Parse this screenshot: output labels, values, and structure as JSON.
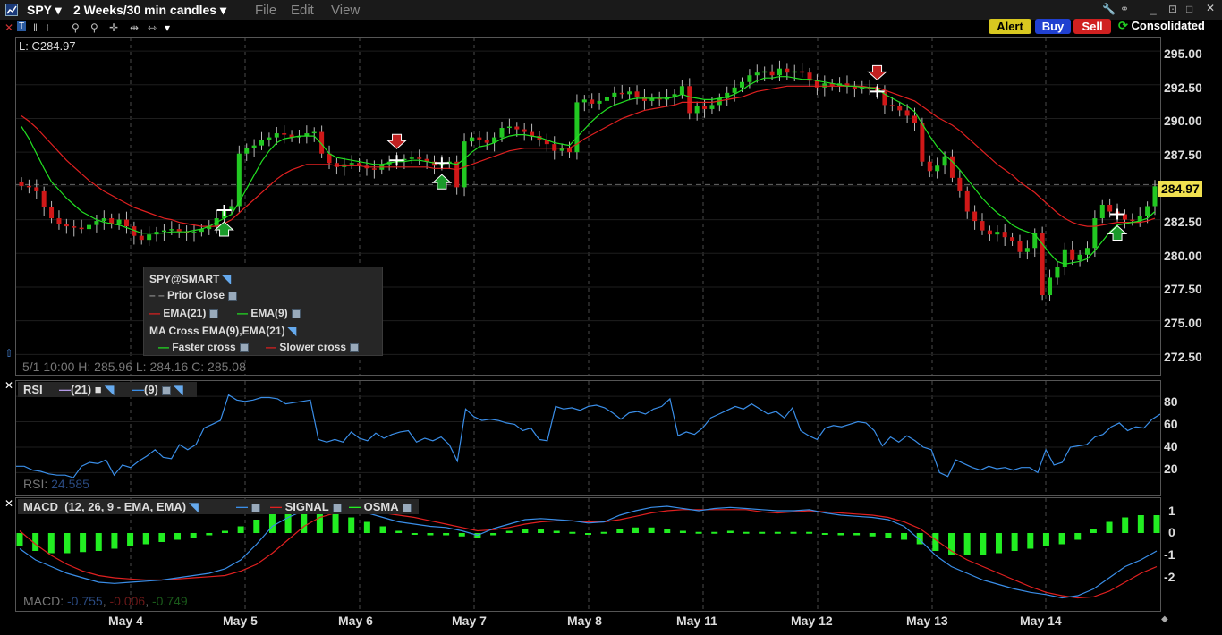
{
  "window": {
    "symbol": "SPY",
    "period": "2 Weeks/30 min candles",
    "menus": [
      "File",
      "Edit",
      "View"
    ]
  },
  "actions": {
    "alert": "Alert",
    "buy": "Buy",
    "sell": "Sell",
    "feed": "Consolidated"
  },
  "price_pane": {
    "last_label": "L: C284.97",
    "last_price": "284.97",
    "bar_info": "5/1 10:00   H: 285.96  L: 284.16  C: 285.08",
    "y_ticks": [
      "295.00",
      "292.50",
      "290.00",
      "287.50",
      "285.00",
      "282.50",
      "280.00",
      "277.50",
      "275.00",
      "272.50"
    ],
    "legend": {
      "title": "SPY@SMART",
      "prior_close": "Prior Close",
      "ema21": "EMA(21)",
      "ema9": "EMA(9)",
      "ma_cross": "MA Cross EMA(9),EMA(21)",
      "faster": "Faster cross",
      "slower": "Slower cross"
    }
  },
  "rsi_pane": {
    "title": "RSI",
    "p21": "(21)",
    "p9": "(9)",
    "readout_label": "RSI:",
    "readout_value": "24.585",
    "y_ticks": [
      "80",
      "60",
      "40",
      "20"
    ]
  },
  "macd_pane": {
    "title": "MACD",
    "params": "(12, 26, 9 - EMA, EMA)",
    "signal": "SIGNAL",
    "osma": "OSMA",
    "readout_label": "MACD:",
    "readout_macd": "-0.755",
    "readout_signal": "-0.006",
    "readout_osma": "-0.749",
    "y_ticks": [
      "1",
      "0",
      "-1",
      "-2"
    ]
  },
  "x_axis": {
    "dates": [
      "May 4",
      "May 5",
      "May 6",
      "May 7",
      "May 8",
      "May 11",
      "May 12",
      "May 13",
      "May 14"
    ]
  },
  "colors": {
    "up": "#22c822",
    "down": "#d01818",
    "ema21": "#e02020",
    "ema9": "#22e022",
    "rsi": "#3a8ee8",
    "macd": "#3a8ee8",
    "signal": "#e02020",
    "osma": "#22ee22",
    "last_price_bg": "#f0e050"
  },
  "chart_data": {
    "type": "candlestick",
    "price_close": [
      285.0,
      284.9,
      284.6,
      283.4,
      282.6,
      282.2,
      282.0,
      281.9,
      281.8,
      282.1,
      282.4,
      282.6,
      282.2,
      282.5,
      282.0,
      281.3,
      281.0,
      281.4,
      281.6,
      281.7,
      281.8,
      281.6,
      281.5,
      281.6,
      281.8,
      282.0,
      282.6,
      283.2,
      283.5,
      287.4,
      287.8,
      288.0,
      288.4,
      288.6,
      288.9,
      288.8,
      288.6,
      288.7,
      288.9,
      289.0,
      287.4,
      286.7,
      286.4,
      286.6,
      286.7,
      286.5,
      286.3,
      286.2,
      286.6,
      286.8,
      286.9,
      287.0,
      287.1,
      287.0,
      286.8,
      286.5,
      286.7,
      286.8,
      284.9,
      288.3,
      288.6,
      288.4,
      288.2,
      288.6,
      289.3,
      289.4,
      289.2,
      289.0,
      288.7,
      288.4,
      288.1,
      287.6,
      287.8,
      287.5,
      291.2,
      291.4,
      291.1,
      291.3,
      291.6,
      291.9,
      291.8,
      292.0,
      291.6,
      291.3,
      291.5,
      291.4,
      291.6,
      291.8,
      292.4,
      290.4,
      290.9,
      290.7,
      291.0,
      291.5,
      291.9,
      292.3,
      292.7,
      293.2,
      293.4,
      293.5,
      293.2,
      293.7,
      293.4,
      293.5,
      293.4,
      292.8,
      292.3,
      292.6,
      292.4,
      292.6,
      292.4,
      292.2,
      292.3,
      292.2,
      292.0,
      291.0,
      290.9,
      290.6,
      290.2,
      289.7,
      286.8,
      286.1,
      286.5,
      287.2,
      285.6,
      284.6,
      283.1,
      282.4,
      281.7,
      281.4,
      281.6,
      281.2,
      280.9,
      280.1,
      280.4,
      281.5,
      276.9,
      278.2,
      279.0,
      280.3,
      279.5,
      279.9,
      280.4,
      282.6,
      283.6,
      283.1,
      282.9,
      282.5,
      282.4,
      282.8,
      283.5,
      284.97
    ],
    "ema9": [
      289.4,
      288.5,
      287.4,
      286.3,
      285.3,
      284.7,
      284.1,
      283.6,
      283.1,
      282.8,
      282.5,
      282.3,
      282.2,
      282.1,
      281.9,
      281.7,
      281.5,
      281.5,
      281.5,
      281.5,
      281.6,
      281.6,
      281.6,
      281.7,
      281.8,
      282.0,
      282.3,
      282.6,
      282.9,
      283.8,
      284.8,
      285.8,
      286.8,
      287.6,
      288.2,
      288.5,
      288.6,
      288.7,
      288.7,
      288.7,
      288.1,
      287.4,
      287.1,
      287.0,
      286.9,
      286.8,
      286.7,
      286.6,
      286.6,
      286.7,
      286.8,
      286.8,
      286.9,
      286.9,
      286.8,
      286.7,
      286.7,
      286.7,
      286.6,
      287.0,
      287.5,
      287.9,
      288.0,
      288.2,
      288.5,
      288.7,
      288.8,
      288.8,
      288.7,
      288.6,
      288.4,
      288.2,
      288.1,
      288.0,
      288.6,
      289.2,
      289.8,
      290.3,
      290.7,
      291.0,
      291.2,
      291.4,
      291.5,
      291.5,
      291.5,
      291.5,
      291.5,
      291.6,
      291.8,
      291.6,
      291.5,
      291.4,
      291.4,
      291.5,
      291.6,
      291.8,
      292.1,
      292.5,
      292.8,
      293.0,
      293.0,
      293.1,
      293.1,
      293.0,
      292.9,
      292.9,
      292.8,
      292.7,
      292.6,
      292.5,
      292.4,
      292.4,
      292.3,
      292.3,
      292.2,
      291.8,
      291.5,
      291.2,
      290.9,
      290.5,
      289.6,
      288.7,
      287.9,
      287.3,
      286.8,
      286.2,
      285.5,
      284.8,
      284.1,
      283.5,
      283.0,
      282.6,
      282.1,
      281.8,
      281.6,
      281.4,
      280.7,
      280.0,
      279.4,
      279.2,
      279.3,
      279.4,
      279.6,
      280.2,
      280.9,
      281.6,
      282.1,
      282.2,
      282.3,
      282.4,
      282.6,
      283.1
    ],
    "ema21": [
      290.2,
      289.8,
      289.3,
      288.7,
      288.1,
      287.5,
      286.9,
      286.4,
      285.9,
      285.4,
      285.0,
      284.6,
      284.3,
      284.0,
      283.7,
      283.4,
      283.2,
      283.0,
      282.8,
      282.6,
      282.5,
      282.3,
      282.2,
      282.1,
      282.0,
      282.0,
      282.0,
      282.2,
      282.5,
      283.0,
      283.5,
      284.0,
      284.5,
      285.0,
      285.5,
      285.9,
      286.2,
      286.4,
      286.6,
      286.6,
      286.6,
      286.6,
      286.5,
      286.5,
      286.5,
      286.5,
      286.4,
      286.4,
      286.4,
      286.4,
      286.4,
      286.4,
      286.4,
      286.4,
      286.4,
      286.3,
      286.3,
      286.3,
      286.2,
      286.4,
      286.6,
      286.8,
      287.0,
      287.2,
      287.4,
      287.6,
      287.7,
      287.8,
      287.8,
      287.8,
      287.8,
      287.8,
      287.8,
      287.8,
      288.1,
      288.5,
      288.8,
      289.1,
      289.4,
      289.7,
      290.0,
      290.2,
      290.4,
      290.6,
      290.7,
      290.8,
      290.9,
      291.0,
      291.2,
      291.2,
      291.2,
      291.2,
      291.2,
      291.3,
      291.4,
      291.5,
      291.6,
      291.8,
      292.0,
      292.1,
      292.2,
      292.3,
      292.4,
      292.4,
      292.4,
      292.4,
      292.4,
      292.4,
      292.4,
      292.4,
      292.4,
      292.4,
      292.4,
      292.3,
      292.3,
      292.1,
      291.9,
      291.7,
      291.5,
      291.3,
      290.9,
      290.5,
      290.1,
      289.8,
      289.5,
      289.1,
      288.6,
      288.1,
      287.6,
      287.1,
      286.6,
      286.2,
      285.8,
      285.3,
      284.9,
      284.5,
      284.0,
      283.5,
      283.0,
      282.6,
      282.3,
      282.1,
      282.0,
      282.0,
      282.1,
      282.2,
      282.3,
      282.3,
      282.3,
      282.3,
      282.4,
      282.6
    ],
    "rsi9": [
      25,
      25,
      22,
      21,
      19,
      18,
      18,
      16,
      25,
      28,
      27,
      30,
      18,
      26,
      24,
      29,
      33,
      38,
      32,
      31,
      42,
      38,
      42,
      55,
      58,
      61,
      81,
      77,
      76,
      77,
      79,
      79,
      78,
      74,
      75,
      76,
      77,
      46,
      44,
      46,
      44,
      52,
      47,
      45,
      51,
      47,
      50,
      52,
      53,
      44,
      47,
      45,
      48,
      42,
      29,
      70,
      64,
      61,
      62,
      61,
      59,
      58,
      53,
      55,
      46,
      45,
      72,
      70,
      71,
      69,
      72,
      73,
      71,
      67,
      62,
      67,
      68,
      66,
      70,
      72,
      78,
      49,
      52,
      50,
      55,
      63,
      66,
      69,
      72,
      70,
      74,
      70,
      66,
      68,
      63,
      71,
      53,
      49,
      46,
      55,
      57,
      56,
      58,
      60,
      59,
      53,
      41,
      48,
      44,
      49,
      45,
      40,
      38,
      20,
      17,
      30,
      27,
      24,
      22,
      25,
      23,
      24,
      22,
      24,
      24,
      20,
      38,
      26,
      28,
      40,
      41,
      42,
      48,
      50,
      56,
      59,
      53,
      56,
      55,
      62,
      66
    ],
    "macd": [
      -0.7,
      -1.2,
      -1.5,
      -1.8,
      -2.0,
      -2.2,
      -2.25,
      -2.2,
      -2.15,
      -2.1,
      -2.0,
      -1.9,
      -1.8,
      -1.6,
      -1.2,
      -0.5,
      0.3,
      0.7,
      1.0,
      1.1,
      1.1,
      1.0,
      0.9,
      0.7,
      0.5,
      0.4,
      0.3,
      0.25,
      0.1,
      -0.1,
      0.2,
      0.4,
      0.6,
      0.65,
      0.6,
      0.55,
      0.45,
      0.5,
      0.8,
      1.0,
      1.15,
      1.2,
      1.1,
      1.0,
      1.1,
      1.15,
      1.1,
      1.05,
      1.0,
      1.0,
      1.05,
      0.9,
      0.8,
      0.75,
      0.7,
      0.6,
      0.3,
      -0.3,
      -1.0,
      -1.5,
      -1.8,
      -2.1,
      -2.3,
      -2.5,
      -2.65,
      -2.75,
      -2.9,
      -2.8,
      -2.5,
      -2.0,
      -1.5,
      -1.2,
      -0.8
    ],
    "signal": [
      0.1,
      -0.5,
      -1.0,
      -1.4,
      -1.7,
      -1.9,
      -2.0,
      -2.05,
      -2.1,
      -2.1,
      -2.05,
      -2.0,
      -1.95,
      -1.9,
      -1.7,
      -1.4,
      -0.9,
      -0.3,
      0.3,
      0.7,
      0.9,
      0.95,
      0.95,
      0.9,
      0.8,
      0.7,
      0.55,
      0.4,
      0.25,
      0.1,
      0.15,
      0.25,
      0.4,
      0.5,
      0.55,
      0.55,
      0.5,
      0.5,
      0.6,
      0.75,
      0.9,
      1.0,
      1.05,
      1.05,
      1.05,
      1.05,
      1.05,
      0.95,
      0.9,
      0.95,
      1.0,
      0.95,
      0.9,
      0.85,
      0.8,
      0.7,
      0.5,
      0.2,
      -0.3,
      -0.8,
      -1.2,
      -1.5,
      -1.8,
      -2.1,
      -2.4,
      -2.65,
      -2.8,
      -2.9,
      -2.85,
      -2.6,
      -2.2,
      -1.8,
      -1.5
    ],
    "osma": [
      -0.6,
      -0.8,
      -0.9,
      -0.9,
      -0.85,
      -0.8,
      -0.7,
      -0.6,
      -0.5,
      -0.4,
      -0.3,
      -0.2,
      -0.1,
      0.1,
      0.3,
      0.6,
      1.0,
      1.1,
      1.1,
      1.0,
      0.9,
      0.7,
      0.5,
      0.3,
      0.1,
      -0.05,
      -0.1,
      -0.1,
      -0.15,
      -0.2,
      -0.1,
      0.1,
      0.2,
      0.2,
      0.1,
      0.05,
      0.0,
      0.05,
      0.2,
      0.25,
      0.25,
      0.2,
      0.1,
      0.05,
      0.05,
      0.1,
      0.05,
      0.05,
      0.05,
      0.05,
      0.05,
      -0.05,
      -0.1,
      -0.1,
      -0.15,
      -0.2,
      -0.3,
      -0.5,
      -0.8,
      -1.0,
      -1.0,
      -1.0,
      -0.9,
      -0.8,
      -0.7,
      -0.6,
      -0.5,
      -0.3,
      0.2,
      0.5,
      0.7,
      0.8,
      0.8
    ],
    "signals": [
      {
        "type": "buy",
        "date_index": 27
      },
      {
        "type": "sell",
        "date_index": 50
      },
      {
        "type": "buy",
        "date_index": 56
      },
      {
        "type": "sell",
        "date_index": 114
      },
      {
        "type": "buy",
        "date_index": 146
      }
    ]
  }
}
